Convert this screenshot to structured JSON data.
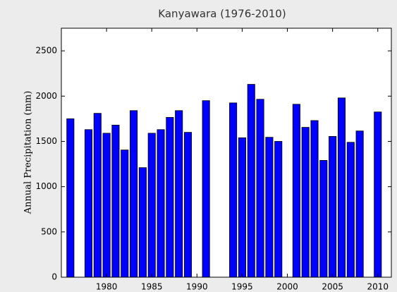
{
  "chart_data": {
    "type": "bar",
    "title": "Kanyawara (1976-2010)",
    "y_label": "Annual Precipitation (mm)",
    "x": [
      1976,
      1978,
      1979,
      1980,
      1981,
      1982,
      1983,
      1984,
      1985,
      1986,
      1987,
      1988,
      1989,
      1991,
      1994,
      1995,
      1996,
      1997,
      1998,
      1999,
      2001,
      2002,
      2003,
      2004,
      2005,
      2006,
      2007,
      2008,
      2010
    ],
    "values": [
      1750,
      1630,
      1810,
      1590,
      1680,
      1405,
      1840,
      1210,
      1590,
      1630,
      1765,
      1840,
      1600,
      1950,
      1925,
      1540,
      2130,
      1965,
      1545,
      1500,
      1910,
      1655,
      1730,
      1290,
      1555,
      1980,
      1490,
      1615,
      1825
    ],
    "color": "#0000ff",
    "xlim": [
      1975,
      2011.5
    ],
    "xticks": [
      1980,
      1985,
      1990,
      1995,
      2000,
      2005,
      2010
    ],
    "ylim": [
      0,
      2750
    ],
    "yticks": [
      0,
      500,
      1000,
      1500,
      2000,
      2500
    ]
  }
}
